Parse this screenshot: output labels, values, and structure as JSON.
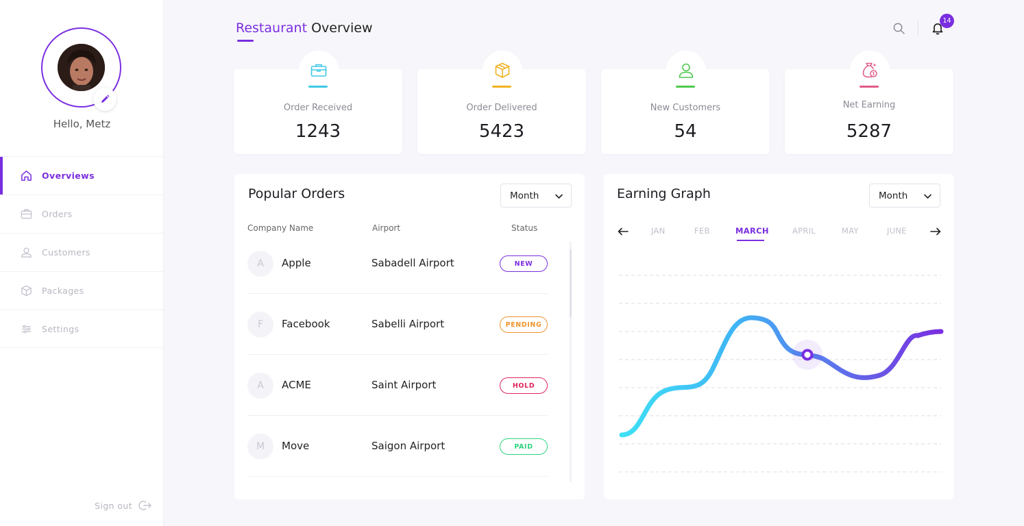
{
  "sidebar": {
    "greeting": "Hello, Metz",
    "items": [
      {
        "label": "Overviews",
        "icon": "home-icon",
        "active": true
      },
      {
        "label": "Orders",
        "icon": "briefcase-icon",
        "active": false
      },
      {
        "label": "Customers",
        "icon": "user-icon",
        "active": false
      },
      {
        "label": "Packages",
        "icon": "package-icon",
        "active": false
      },
      {
        "label": "Settings",
        "icon": "sliders-icon",
        "active": false
      }
    ],
    "signout": "Sign out"
  },
  "header": {
    "title_accent": "Restaurant",
    "title_rest": "Overview",
    "notification_count": "14"
  },
  "stats": [
    {
      "label": "Order Received",
      "value": "1243",
      "icon": "briefcase-icon",
      "color": "#3dc8e6"
    },
    {
      "label": "Order Delivered",
      "value": "5423",
      "icon": "package-icon",
      "color": "#f2b21f"
    },
    {
      "label": "New Customers",
      "value": "54",
      "icon": "user-icon",
      "color": "#4cc94c"
    },
    {
      "label": "Net Earning",
      "value": "5287",
      "icon": "money-bag-icon",
      "color": "#e05a8a"
    }
  ],
  "popular_orders": {
    "title": "Popular Orders",
    "filter": "Month",
    "columns": [
      "Company Name",
      "Airport",
      "Status"
    ],
    "rows": [
      {
        "initial": "A",
        "company": "Apple",
        "airport": "Sabadell Airport",
        "status": "NEW",
        "status_color": "#7a2ee0"
      },
      {
        "initial": "F",
        "company": "Facebook",
        "airport": "Sabelli Airport",
        "status": "PENDING",
        "status_color": "#f0942b"
      },
      {
        "initial": "A",
        "company": "ACME",
        "airport": "Saint Airport",
        "status": "HOLD",
        "status_color": "#e0245e"
      },
      {
        "initial": "M",
        "company": "Move",
        "airport": "Saigon Airport",
        "status": "PAID",
        "status_color": "#2dd47e"
      }
    ]
  },
  "earning_graph": {
    "title": "Earning Graph",
    "filter": "Month",
    "months": [
      "JAN",
      "FEB",
      "MARCH",
      "APRIL",
      "MAY",
      "JUNE"
    ],
    "active_month": "MARCH"
  },
  "colors": {
    "accent": "#7a2ee0",
    "gradient_start": "#3fe0f5",
    "gradient_end": "#7a2ee0"
  }
}
